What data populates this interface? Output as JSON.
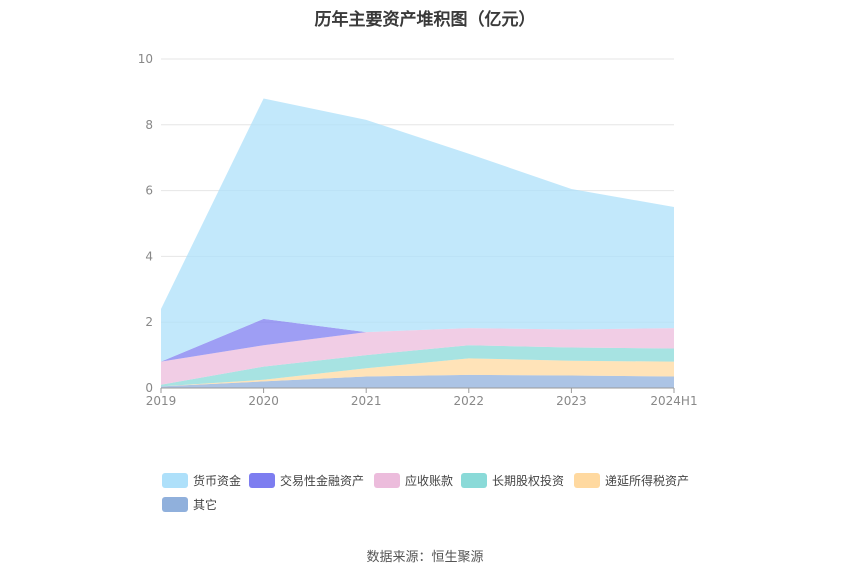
{
  "title": "历年主要资产堆积图（亿元）",
  "source": "数据来源：恒生聚源",
  "chart_data": {
    "type": "area",
    "stacked": true,
    "title": "历年主要资产堆积图（亿元）",
    "categories": [
      "2019",
      "2020",
      "2021",
      "2022",
      "2023",
      "2024H1"
    ],
    "ylim": [
      0,
      10
    ],
    "yticks": [
      0,
      2,
      4,
      6,
      8,
      10
    ],
    "grid": true,
    "legend_position": "bottom",
    "series": [
      {
        "name": "其它",
        "color": "#90b0dc",
        "values": [
          0.05,
          0.2,
          0.35,
          0.4,
          0.38,
          0.35
        ]
      },
      {
        "name": "递延所得税资产",
        "color": "#ffd9a0",
        "values": [
          0.0,
          0.05,
          0.25,
          0.5,
          0.45,
          0.45
        ]
      },
      {
        "name": "长期股权投资",
        "color": "#8adad8",
        "values": [
          0.05,
          0.4,
          0.4,
          0.4,
          0.4,
          0.4
        ]
      },
      {
        "name": "应收账款",
        "color": "#ecbcdc",
        "values": [
          0.7,
          0.65,
          0.7,
          0.52,
          0.55,
          0.62
        ]
      },
      {
        "name": "交易性金融资产",
        "color": "#7d7df0",
        "values": [
          0.0,
          0.8,
          0.0,
          0.0,
          0.0,
          0.0
        ]
      },
      {
        "name": "货币资金",
        "color": "#aee0fa",
        "values": [
          1.6,
          6.7,
          6.45,
          5.3,
          4.27,
          3.68
        ]
      }
    ],
    "legend_order": [
      "货币资金",
      "交易性金融资产",
      "应收账款",
      "长期股权投资",
      "递延所得税资产",
      "其它"
    ]
  }
}
